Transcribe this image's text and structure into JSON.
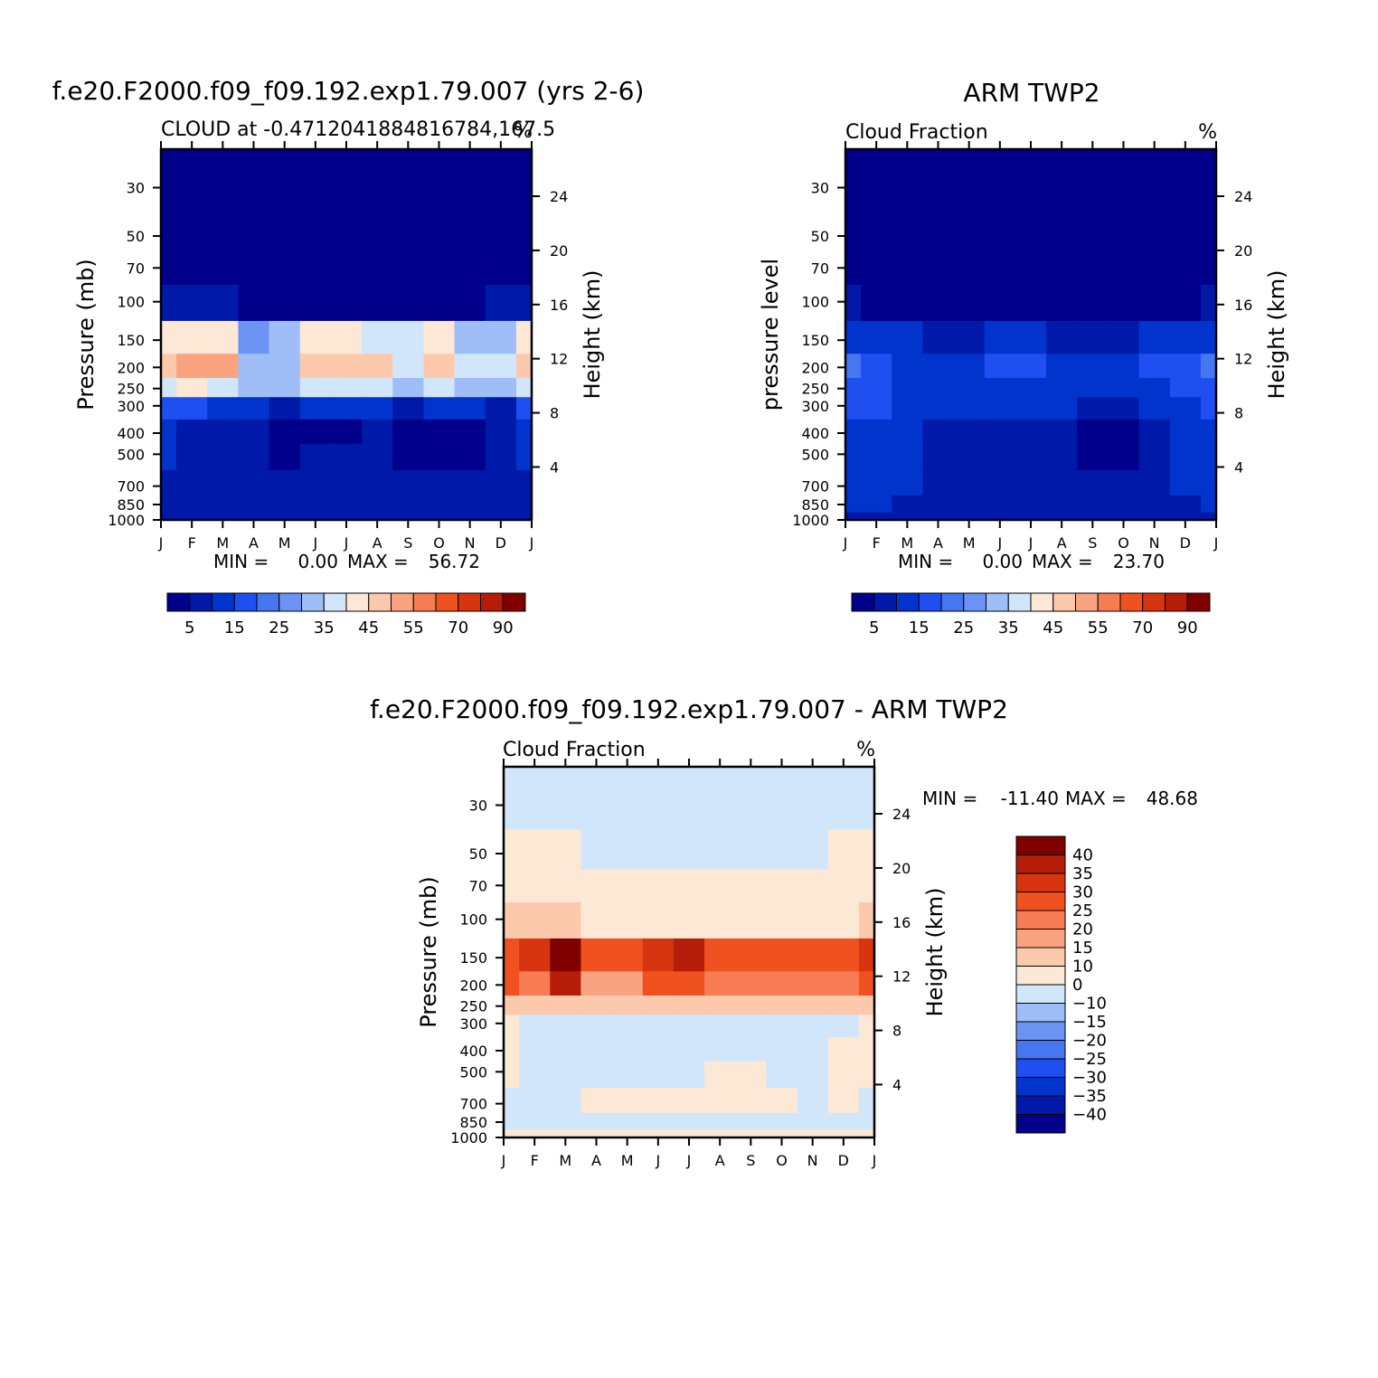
{
  "panels": [
    {
      "id": "model",
      "title": "f.e20.F2000.f09_f09.192.exp1.79.007 (yrs 2-6)",
      "subtitle": "CLOUD at -0.4712041884816784,167.5",
      "units": "%",
      "ylabel_left": "Pressure (mb)",
      "ylabel_right": "Height (km)",
      "min_label": "MIN =",
      "min_value": "0.00",
      "max_label": "MAX =",
      "max_value": "56.72"
    },
    {
      "id": "obs",
      "title": "ARM TWP2",
      "subtitle": "Cloud Fraction",
      "units": "%",
      "ylabel_left": "pressure level",
      "ylabel_right": "Height (km)",
      "min_label": "MIN =",
      "min_value": "0.00",
      "max_label": "MAX =",
      "max_value": "23.70"
    },
    {
      "id": "diff",
      "title": "f.e20.F2000.f09_f09.192.exp1.79.007 - ARM TWP2",
      "subtitle": "Cloud Fraction",
      "units": "%",
      "ylabel_left": "Pressure (mb)",
      "ylabel_right": "Height (km)",
      "min_label": "MIN =",
      "min_value": "-11.40",
      "max_label": "MAX =",
      "max_value": "48.68"
    }
  ],
  "colors": {
    "abs_scale": [
      "#00008a",
      "#0019a8",
      "#0034cc",
      "#1f4ff0",
      "#4676f0",
      "#6b93f3",
      "#9fbdf6",
      "#d1e6fb",
      "#fde8d6",
      "#fcc9ad",
      "#f9a381",
      "#f77c53",
      "#f0521f",
      "#d63510",
      "#b51d08",
      "#800000"
    ],
    "diff_scale": [
      "#800000",
      "#b51d08",
      "#d63510",
      "#f0521f",
      "#f77c53",
      "#f9a381",
      "#fcc9ad",
      "#fde8d6",
      "#d1e6fb",
      "#9fbdf6",
      "#6b93f3",
      "#4676f0",
      "#1f4ff0",
      "#0034cc",
      "#0019a8",
      "#00008a"
    ]
  },
  "chart_data": [
    {
      "type": "heatmap",
      "title": "f.e20.F2000.f09_f09.192.exp1.79.007 (yrs 2-6)",
      "subtitle": "CLOUD at -0.4712041884816784,167.5",
      "x": [
        "J",
        "F",
        "M",
        "A",
        "M",
        "J",
        "J",
        "A",
        "S",
        "O",
        "N",
        "D",
        "J"
      ],
      "y_pressure_ticks": [
        30,
        50,
        70,
        100,
        150,
        200,
        250,
        300,
        400,
        500,
        700,
        850,
        1000
      ],
      "y_height_ticks": [
        24,
        20,
        16,
        12,
        8,
        4
      ],
      "xlabel": "",
      "ylabel": "Pressure (mb)",
      "ylabel_right": "Height (km)",
      "colorbar_labels": [
        "5",
        "15",
        "25",
        "35",
        "45",
        "55",
        "70",
        "90"
      ],
      "min": 0.0,
      "max": 56.72,
      "values": [
        [
          0,
          0,
          0,
          0,
          0,
          0,
          0,
          0,
          0,
          0,
          0,
          0,
          0
        ],
        [
          0,
          0,
          0,
          0,
          0,
          0,
          0,
          0,
          0,
          0,
          0,
          0,
          0
        ],
        [
          0,
          0,
          0,
          0,
          0,
          0,
          0,
          0,
          0,
          0,
          0,
          0,
          0
        ],
        [
          8,
          8,
          8,
          4,
          3,
          2,
          2,
          2,
          2,
          2,
          3,
          5,
          8
        ],
        [
          43,
          44,
          44,
          28,
          30,
          40,
          42,
          38,
          35,
          40,
          32,
          30,
          43
        ],
        [
          47,
          52,
          50,
          30,
          30,
          46,
          47,
          46,
          38,
          45,
          35,
          38,
          47
        ],
        [
          37,
          40,
          38,
          30,
          30,
          38,
          38,
          38,
          30,
          38,
          30,
          30,
          37
        ],
        [
          15,
          15,
          14,
          10,
          9,
          10,
          10,
          10,
          9,
          12,
          10,
          9,
          15
        ],
        [
          10,
          8,
          9,
          6,
          3,
          4,
          4,
          6,
          3,
          2,
          2,
          6,
          10
        ],
        [
          10,
          8,
          9,
          6,
          3,
          5,
          5,
          6,
          3,
          2,
          2,
          6,
          10
        ],
        [
          8,
          8,
          7,
          6,
          5,
          5,
          5,
          5,
          5,
          5,
          5,
          6,
          8
        ],
        [
          8,
          8,
          7,
          6,
          5,
          5,
          5,
          5,
          5,
          5,
          5,
          6,
          8
        ],
        [
          5,
          5,
          5,
          5,
          5,
          5,
          5,
          5,
          5,
          5,
          5,
          5,
          5
        ]
      ]
    },
    {
      "type": "heatmap",
      "title": "ARM TWP2",
      "subtitle": "Cloud Fraction",
      "x": [
        "J",
        "F",
        "M",
        "A",
        "M",
        "J",
        "J",
        "A",
        "S",
        "O",
        "N",
        "D",
        "J"
      ],
      "y_pressure_ticks": [
        30,
        50,
        70,
        100,
        150,
        200,
        250,
        300,
        400,
        500,
        700,
        850,
        1000
      ],
      "y_height_ticks": [
        24,
        20,
        16,
        12,
        8,
        4
      ],
      "xlabel": "",
      "ylabel": "pressure level",
      "ylabel_right": "Height (km)",
      "colorbar_labels": [
        "5",
        "15",
        "25",
        "35",
        "45",
        "55",
        "70",
        "90"
      ],
      "min": 0.0,
      "max": 23.7,
      "values": [
        [
          0,
          0,
          0,
          0,
          0,
          0,
          0,
          0,
          0,
          0,
          0,
          0,
          0
        ],
        [
          0,
          0,
          0,
          0,
          0,
          0,
          0,
          0,
          0,
          0,
          0,
          0,
          0
        ],
        [
          0,
          0,
          0,
          0,
          0,
          0,
          0,
          0,
          0,
          0,
          0,
          0,
          0
        ],
        [
          5,
          3,
          2,
          1,
          1,
          1,
          1,
          1,
          1,
          1,
          2,
          3,
          5
        ],
        [
          14,
          12,
          10,
          8,
          8,
          10,
          10,
          9,
          6,
          8,
          10,
          12,
          14
        ],
        [
          20,
          16,
          14,
          12,
          12,
          18,
          18,
          14,
          12,
          12,
          16,
          18,
          20
        ],
        [
          18,
          15,
          14,
          13,
          12,
          14,
          14,
          13,
          12,
          12,
          14,
          15,
          18
        ],
        [
          15,
          15,
          14,
          13,
          10,
          10,
          10,
          10,
          8,
          8,
          12,
          14,
          15
        ],
        [
          13,
          13,
          13,
          8,
          6,
          6,
          6,
          7,
          4,
          2,
          8,
          12,
          13
        ],
        [
          12,
          12,
          12,
          8,
          6,
          6,
          6,
          7,
          4,
          2,
          8,
          12,
          13
        ],
        [
          10,
          10,
          10,
          9,
          8,
          8,
          8,
          8,
          7,
          6,
          9,
          10,
          10
        ],
        [
          10,
          10,
          9,
          9,
          9,
          9,
          9,
          9,
          9,
          9,
          9,
          9,
          10
        ],
        [
          8,
          8,
          8,
          8,
          8,
          8,
          8,
          8,
          8,
          8,
          8,
          8,
          8
        ]
      ]
    },
    {
      "type": "heatmap",
      "title": "f.e20.F2000.f09_f09.192.exp1.79.007 - ARM TWP2",
      "subtitle": "Cloud Fraction",
      "x": [
        "J",
        "F",
        "M",
        "A",
        "M",
        "J",
        "J",
        "A",
        "S",
        "O",
        "N",
        "D",
        "J"
      ],
      "y_pressure_ticks": [
        30,
        50,
        70,
        100,
        150,
        200,
        250,
        300,
        400,
        500,
        700,
        850,
        1000
      ],
      "y_height_ticks": [
        24,
        20,
        16,
        12,
        8,
        4
      ],
      "xlabel": "",
      "ylabel": "Pressure (mb)",
      "ylabel_right": "Height (km)",
      "colorbar_labels": [
        "40",
        "35",
        "30",
        "25",
        "20",
        "15",
        "10",
        "0",
        "−10",
        "−15",
        "−20",
        "−25",
        "−30",
        "−35",
        "−40"
      ],
      "min": -11.4,
      "max": 48.68,
      "values": [
        [
          -1,
          -1,
          -1,
          -1,
          -1,
          -1,
          -1,
          -1,
          -1,
          -1,
          -1,
          -1,
          -1
        ],
        [
          5,
          5,
          5,
          -1,
          -1,
          -1,
          -1,
          -1,
          -1,
          -1,
          -1,
          5,
          5
        ],
        [
          5,
          5,
          5,
          5,
          5,
          5,
          5,
          5,
          5,
          5,
          5,
          5,
          5
        ],
        [
          12,
          12,
          12,
          8,
          6,
          6,
          6,
          6,
          6,
          6,
          6,
          8,
          12
        ],
        [
          29,
          32,
          45,
          25,
          27,
          30,
          35,
          29,
          27,
          27,
          26,
          28,
          33
        ],
        [
          27,
          24,
          36,
          18,
          18,
          28,
          29,
          22,
          20,
          20,
          20,
          20,
          27
        ],
        [
          12,
          10,
          14,
          12,
          10,
          12,
          12,
          12,
          10,
          10,
          10,
          10,
          12
        ],
        [
          3,
          -1,
          -1,
          -1,
          -1,
          -1,
          -1,
          -1,
          -1,
          -1,
          -1,
          -1,
          3
        ],
        [
          3,
          -1,
          -1,
          -1,
          -1,
          -1,
          -1,
          -1,
          -1,
          -1,
          -1,
          3,
          3
        ],
        [
          3,
          -1,
          -1,
          -1,
          -1,
          -1,
          -1,
          3,
          3,
          -1,
          -1,
          3,
          3
        ],
        [
          -1,
          -1,
          -1,
          3,
          3,
          3,
          3,
          3,
          3,
          3,
          -1,
          3,
          -1
        ],
        [
          -1,
          -1,
          -1,
          -1,
          -1,
          -1,
          -1,
          -1,
          -1,
          -1,
          -1,
          -1,
          -1
        ],
        [
          3,
          3,
          3,
          3,
          3,
          3,
          3,
          3,
          3,
          3,
          3,
          3,
          3
        ]
      ]
    }
  ]
}
